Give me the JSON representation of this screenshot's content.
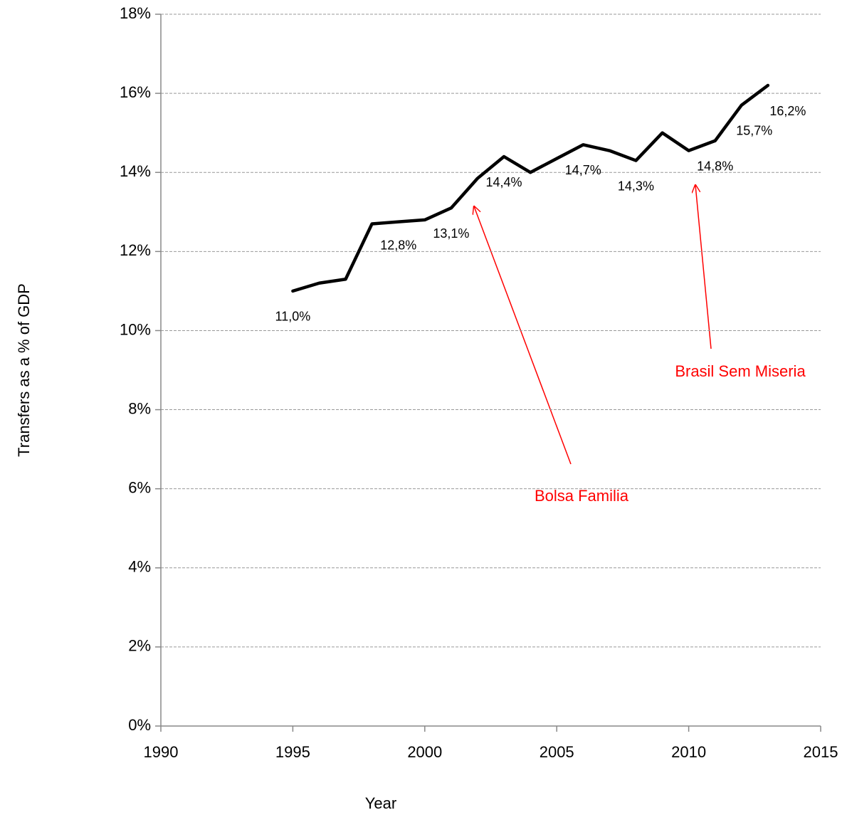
{
  "chart_data": {
    "type": "line",
    "x_label": "Year",
    "y_label": "Transfers as a % of GDP",
    "x": [
      1995,
      1996,
      1997,
      1998,
      1999,
      2000,
      2001,
      2002,
      2003,
      2004,
      2005,
      2006,
      2007,
      2008,
      2009,
      2010,
      2011,
      2012,
      2013
    ],
    "series": [
      {
        "color": "#000000",
        "values": [
          11.0,
          11.2,
          11.3,
          12.7,
          12.75,
          12.8,
          13.1,
          13.85,
          14.4,
          14.0,
          14.35,
          14.7,
          14.55,
          14.3,
          15.0,
          14.55,
          14.8,
          15.7,
          16.2
        ],
        "value_labels": [
          "11,0%",
          null,
          null,
          null,
          null,
          "12,8%",
          "13,1%",
          null,
          "14,4%",
          null,
          null,
          "14,7%",
          null,
          "14,3%",
          null,
          null,
          "14,8%",
          "15,7%",
          "16,2%"
        ]
      }
    ],
    "xlim": [
      1990,
      2015
    ],
    "xticks": [
      1990,
      1995,
      2000,
      2005,
      2010,
      2015
    ],
    "ylim": [
      0,
      18
    ],
    "yticks": [
      {
        "value": 0,
        "label": "0%"
      },
      {
        "value": 2,
        "label": "2%"
      },
      {
        "value": 4,
        "label": "4%"
      },
      {
        "value": 6,
        "label": "6%"
      },
      {
        "value": 8,
        "label": "8%"
      },
      {
        "value": 10,
        "label": "10%"
      },
      {
        "value": 12,
        "label": "12%"
      },
      {
        "value": 14,
        "label": "14%"
      },
      {
        "value": 16,
        "label": "16%"
      },
      {
        "value": 18,
        "label": "18%"
      }
    ],
    "grid": true,
    "annotations": [
      {
        "text": "Bolsa Familia"
      },
      {
        "text": "Brasil Sem Miseria"
      }
    ]
  }
}
